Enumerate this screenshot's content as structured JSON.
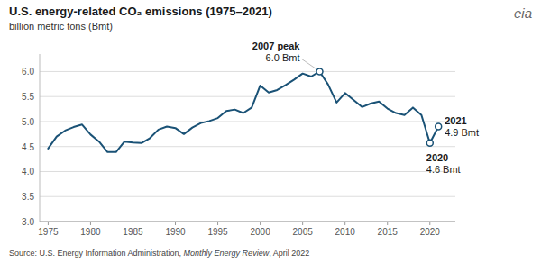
{
  "chart_data": {
    "type": "line",
    "title": "U.S. energy-related CO₂ emissions (1975–2021)",
    "subtitle": "billion metric tons (Bmt)",
    "logo": "eia",
    "x": [
      1975,
      1976,
      1977,
      1978,
      1979,
      1980,
      1981,
      1982,
      1983,
      1984,
      1985,
      1986,
      1987,
      1988,
      1989,
      1990,
      1991,
      1992,
      1993,
      1994,
      1995,
      1996,
      1997,
      1998,
      1999,
      2000,
      2001,
      2002,
      2003,
      2004,
      2005,
      2006,
      2007,
      2008,
      2009,
      2010,
      2011,
      2012,
      2013,
      2014,
      2015,
      2016,
      2017,
      2018,
      2019,
      2020,
      2021
    ],
    "values": [
      4.46,
      4.7,
      4.82,
      4.89,
      4.94,
      4.74,
      4.6,
      4.39,
      4.39,
      4.6,
      4.58,
      4.57,
      4.67,
      4.84,
      4.9,
      4.87,
      4.75,
      4.88,
      4.97,
      5.01,
      5.07,
      5.21,
      5.24,
      5.17,
      5.28,
      5.72,
      5.58,
      5.63,
      5.73,
      5.84,
      5.96,
      5.9,
      6.0,
      5.74,
      5.38,
      5.57,
      5.43,
      5.29,
      5.36,
      5.4,
      5.26,
      5.17,
      5.13,
      5.28,
      5.13,
      4.57,
      4.9
    ],
    "color": "#1a5276",
    "xlim": [
      1974,
      2023
    ],
    "xticks": [
      1975,
      1980,
      1985,
      1990,
      1995,
      2000,
      2005,
      2010,
      2015,
      2020
    ],
    "ylim": [
      3.0,
      6.35
    ],
    "yticks": [
      {
        "value": 3.0,
        "label": "3.0"
      },
      3.5,
      {
        "value": 4.0,
        "label": "4.0"
      },
      4.5,
      {
        "value": 5.0,
        "label": "5.0"
      },
      5.5,
      {
        "value": 6.0,
        "label": "6.0"
      }
    ],
    "grid": true,
    "annotations": [
      {
        "x": 2007,
        "y": 6.0,
        "label": "2007 peak",
        "detail": "6.0 Bmt"
      },
      {
        "x": 2020,
        "y": 4.57,
        "label": "2020",
        "detail": "4.6 Bmt"
      },
      {
        "x": 2021,
        "y": 4.9,
        "label": "2021",
        "detail": "4.9 Bmt"
      }
    ],
    "source": [
      "Source: U.S. Energy Information Administration, ",
      "Monthly Energy Review",
      ", April 2022"
    ]
  }
}
